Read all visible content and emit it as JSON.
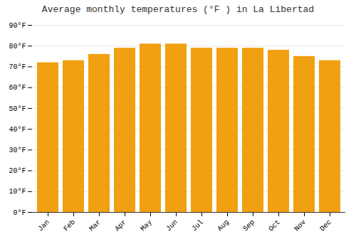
{
  "chart_data": {
    "type": "bar",
    "title": "Average monthly temperatures (°F ) in La Libertad",
    "categories": [
      "Jan",
      "Feb",
      "Mar",
      "Apr",
      "May",
      "Jun",
      "Jul",
      "Aug",
      "Sep",
      "Oct",
      "Nov",
      "Dec"
    ],
    "values": [
      72,
      73,
      76,
      79,
      81,
      81,
      79,
      79,
      79,
      78,
      75,
      73
    ],
    "color": "#F0A010",
    "ylim": [
      0,
      90
    ],
    "yticks": [
      {
        "value": 0,
        "label": "0°F"
      },
      {
        "value": 10,
        "label": "10°F"
      },
      {
        "value": 20,
        "label": "20°F"
      },
      {
        "value": 30,
        "label": "30°F"
      },
      {
        "value": 40,
        "label": "40°F"
      },
      {
        "value": 50,
        "label": "50°F"
      },
      {
        "value": 60,
        "label": "60°F"
      },
      {
        "value": 70,
        "label": "70°F"
      },
      {
        "value": 80,
        "label": "80°F"
      },
      {
        "value": 90,
        "label": "90°F"
      }
    ],
    "grid": true
  }
}
